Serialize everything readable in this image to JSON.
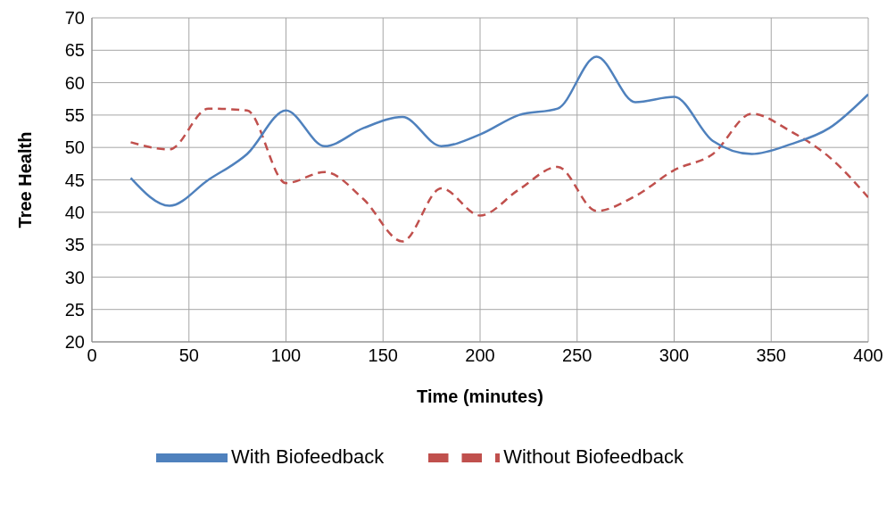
{
  "chart_data": {
    "type": "line",
    "xlabel": "Time (minutes)",
    "ylabel": "Tree Health",
    "x": [
      20,
      40,
      60,
      80,
      100,
      120,
      140,
      160,
      180,
      200,
      220,
      240,
      260,
      280,
      300,
      320,
      340,
      360,
      380,
      400
    ],
    "series": [
      {
        "name": "Without Biofeedback",
        "color": "#c0504d",
        "line_style": "dashed",
        "values": [
          50.8,
          49.7,
          56,
          55.7,
          44.5,
          46.2,
          42,
          35.5,
          43.7,
          39.5,
          43.5,
          47,
          40.2,
          42.5,
          46.5,
          49,
          55.2,
          52.5,
          48.5,
          42.3
        ]
      },
      {
        "name": "With Biofeedback",
        "color": "#4f81bd",
        "line_style": "solid",
        "values": [
          45.3,
          41,
          45,
          49,
          55.7,
          50.2,
          53,
          54.7,
          50.2,
          52,
          55,
          56,
          64,
          57,
          57.8,
          51,
          49,
          50.5,
          53,
          58.2
        ]
      }
    ],
    "xlim": [
      0,
      400
    ],
    "xticks": [
      0,
      50,
      100,
      150,
      200,
      250,
      300,
      350,
      400
    ],
    "ylim": [
      20,
      70
    ],
    "yticks": [
      20,
      25,
      30,
      35,
      40,
      45,
      50,
      55,
      60,
      65,
      70
    ],
    "grid": true,
    "legend": "bottom",
    "marker": "none"
  }
}
